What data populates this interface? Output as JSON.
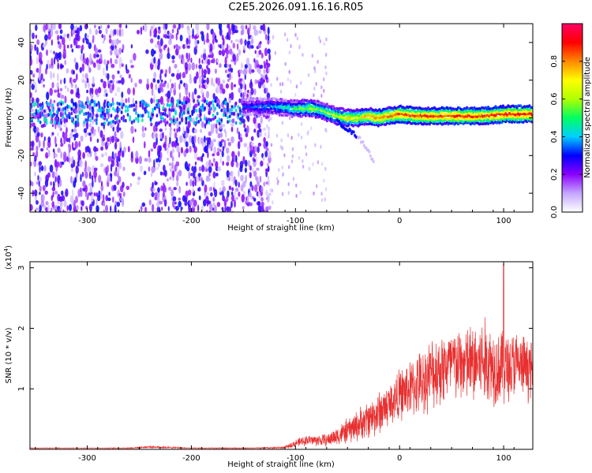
{
  "title": "C2E5.2026.091.16.16.R05",
  "chart_data": [
    {
      "type": "heatmap",
      "title": "C2E5.2026.091.16.16.R05",
      "xlabel": "Height of straight line (km)",
      "ylabel": "Frequency (Hz)",
      "xlim": [
        -355,
        128
      ],
      "ylim": [
        -50,
        50
      ],
      "xticks": [
        -300,
        -200,
        -100,
        0,
        100
      ],
      "yticks": [
        -40,
        -20,
        0,
        20,
        40
      ],
      "colorbar": {
        "label": "Normalized spectral amplitude",
        "range": [
          0,
          1
        ],
        "ticks": [
          0.0,
          0.2,
          0.4,
          0.6,
          0.8
        ],
        "colors": [
          "#ffffff",
          "#c4a6ff",
          "#8c00ff",
          "#0000ff",
          "#00cfff",
          "#00ff60",
          "#b0ff00",
          "#ffff00",
          "#ff8800",
          "#ff0000",
          "#ff0066"
        ]
      },
      "ridge": {
        "x": [
          -150,
          -120,
          -100,
          -85,
          -75,
          -60,
          -50,
          -40,
          -30,
          -20,
          -10,
          0,
          20,
          40,
          60,
          80,
          100,
          128
        ],
        "y": [
          6,
          6,
          5,
          5,
          4,
          1,
          0,
          0,
          1,
          0,
          1,
          2,
          1,
          1,
          1,
          1,
          2,
          2
        ],
        "amplitude": [
          0.3,
          0.4,
          0.5,
          0.6,
          0.55,
          0.65,
          0.7,
          0.7,
          0.75,
          0.8,
          0.8,
          0.85,
          0.85,
          0.85,
          0.9,
          0.85,
          0.9,
          0.9
        ]
      },
      "branch": {
        "x": [
          -60,
          -50,
          -40,
          -30,
          -25
        ],
        "y": [
          -2,
          -6,
          -10,
          -17,
          -24
        ]
      }
    },
    {
      "type": "line",
      "xlabel": "Height of straight line (km)",
      "ylabel": "SNR (10 * v/v)",
      "scale_label": "(x10",
      "scale_exp": "4",
      "xlim": [
        -355,
        128
      ],
      "ylim": [
        0,
        3.1
      ],
      "xticks": [
        -300,
        -200,
        -100,
        0,
        100
      ],
      "yticks": [
        1,
        2,
        3
      ],
      "series": [
        {
          "name": "SNR",
          "color": "#e83030",
          "envelope": {
            "x": [
              -355,
              -300,
              -260,
              -240,
              -200,
              -140,
              -110,
              -100,
              -90,
              -70,
              -50,
              -40,
              -30,
              -20,
              -10,
              0,
              10,
              20,
              30,
              40,
              50,
              60,
              70,
              80,
              90,
              100,
              110,
              120,
              128
            ],
            "center": [
              0.02,
              0.02,
              0.02,
              0.04,
              0.02,
              0.02,
              0.03,
              0.1,
              0.15,
              0.15,
              0.3,
              0.4,
              0.5,
              0.6,
              0.75,
              0.9,
              1.0,
              1.1,
              1.25,
              1.35,
              1.4,
              1.4,
              1.4,
              1.45,
              1.4,
              1.35,
              1.4,
              1.35,
              1.3
            ],
            "spread": [
              0.005,
              0.005,
              0.008,
              0.02,
              0.006,
              0.008,
              0.02,
              0.06,
              0.08,
              0.1,
              0.2,
              0.25,
              0.3,
              0.35,
              0.35,
              0.4,
              0.45,
              0.5,
              0.55,
              0.6,
              0.6,
              0.6,
              0.65,
              0.7,
              0.65,
              0.6,
              0.55,
              0.5,
              0.45
            ]
          },
          "peak": {
            "x": 100,
            "y": 3.05
          }
        }
      ]
    }
  ]
}
